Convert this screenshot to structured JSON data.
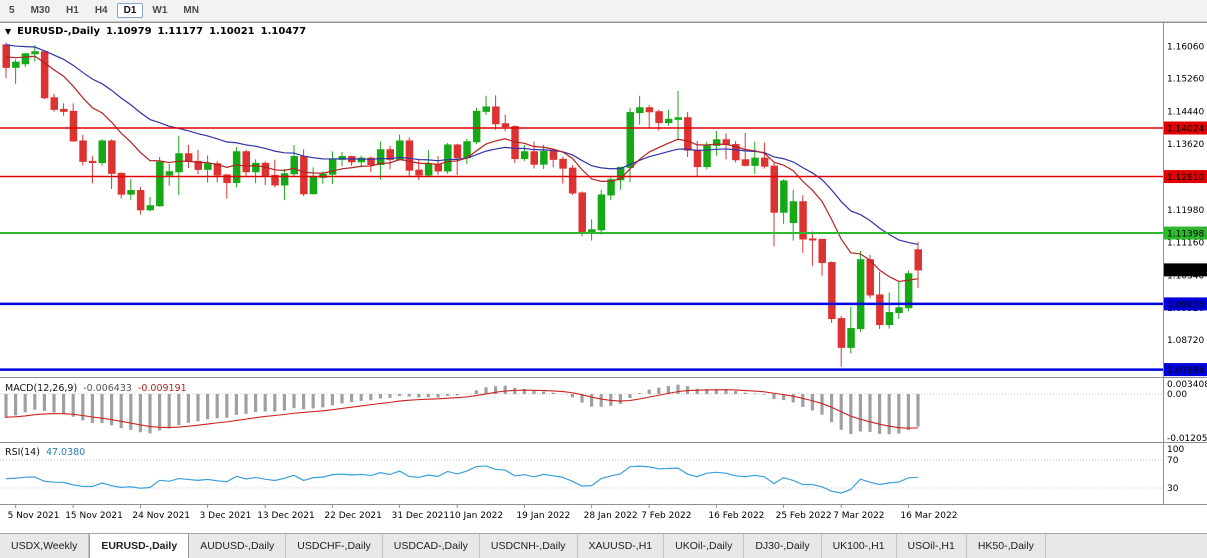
{
  "toolbar": {
    "timeframes": [
      "5",
      "M30",
      "H1",
      "H4",
      "D1",
      "W1",
      "MN"
    ],
    "active": "D1"
  },
  "chart_header": {
    "collapse_icon": "▼",
    "symbol": "EURUSD-,Daily",
    "open": "1.10979",
    "high": "1.11177",
    "low": "1.10021",
    "close": "1.10477"
  },
  "price_axis": {
    "labels": [
      "1.16060",
      "1.15260",
      "1.14440",
      "1.13620",
      "1.12800",
      "1.11980",
      "1.11160",
      "1.10340",
      "1.09520",
      "1.08720",
      "1.07900"
    ]
  },
  "levels": [
    {
      "label": "1.14024",
      "price": 1.14024,
      "color": "#e00000",
      "width": 1.5,
      "line": true
    },
    {
      "label": "1.12810",
      "price": 1.1281,
      "color": "#e00000",
      "width": 1.5,
      "line": true
    },
    {
      "label": "1.11398",
      "price": 1.11398,
      "color": "#2db82d",
      "width": 2,
      "line": true
    },
    {
      "label": "1.10477",
      "price": 1.10477,
      "color": "#000000",
      "width": 0,
      "line": false
    },
    {
      "label": "1.09626",
      "price": 1.09626,
      "color": "#0000dd",
      "width": 2.5,
      "line": true
    },
    {
      "label": "1.07984",
      "price": 1.07984,
      "color": "#0000dd",
      "width": 2.5,
      "line": true
    }
  ],
  "macd": {
    "label": "MACD(12,26,9)",
    "value": "-0.006433",
    "signal": "-0.009191",
    "axis_top": "0.003408",
    "axis_zero": "0.00",
    "axis_bottom": "-0.012058",
    "max": 0.003408,
    "min": -0.012058
  },
  "rsi": {
    "label": "RSI(14)",
    "value": "47.0380",
    "axis": [
      "100",
      "70",
      "30"
    ],
    "levels": [
      70,
      30
    ]
  },
  "x_axis": {
    "labels": [
      {
        "t": "5 Nov 2021",
        "i": 1
      },
      {
        "t": "15 Nov 2021",
        "i": 7
      },
      {
        "t": "24 Nov 2021",
        "i": 14
      },
      {
        "t": "3 Dec 2021",
        "i": 21
      },
      {
        "t": "13 Dec 2021",
        "i": 27
      },
      {
        "t": "22 Dec 2021",
        "i": 34
      },
      {
        "t": "31 Dec 2021",
        "i": 41
      },
      {
        "t": "10 Jan 2022",
        "i": 47
      },
      {
        "t": "19 Jan 2022",
        "i": 54
      },
      {
        "t": "28 Jan 2022",
        "i": 61
      },
      {
        "t": "7 Feb 2022",
        "i": 67
      },
      {
        "t": "16 Feb 2022",
        "i": 74
      },
      {
        "t": "25 Feb 2022",
        "i": 81
      },
      {
        "t": "7 Mar 2022",
        "i": 87
      },
      {
        "t": "16 Mar 2022",
        "i": 94
      }
    ]
  },
  "tabs": [
    {
      "label": "USDX,Weekly",
      "active": false
    },
    {
      "label": "EURUSD-,Daily",
      "active": true
    },
    {
      "label": "AUDUSD-,Daily",
      "active": false
    },
    {
      "label": "USDCHF-,Daily",
      "active": false
    },
    {
      "label": "USDCAD-,Daily",
      "active": false
    },
    {
      "label": "USDCNH-,Daily",
      "active": false
    },
    {
      "label": "XAUUSD-,H1",
      "active": false
    },
    {
      "label": "UKOil-,Daily",
      "active": false
    },
    {
      "label": "DJ30-,Daily",
      "active": false
    },
    {
      "label": "UK100-,H1",
      "active": false
    },
    {
      "label": "USOil-,H1",
      "active": false
    },
    {
      "label": "HK50-,Daily",
      "active": false
    }
  ],
  "colors": {
    "bull": "#17a817",
    "bear": "#dc3232",
    "ma_fast": "#b22222",
    "ma_slow": "#3333aa",
    "macd_hist": "#a0a0a0",
    "macd_signal": "#cc2222",
    "rsi_line": "#3da0dc",
    "separator": "#909090",
    "dotted": "#c4c4c4"
  },
  "chart_data": {
    "type": "candlestick",
    "title": "EURUSD-,Daily",
    "current_bar": {
      "open": 1.10979,
      "high": 1.11177,
      "low": 1.10021,
      "close": 1.10477
    },
    "indicators": [
      "MACD(12,26,9) = -0.006433 / -0.009191",
      "RSI(14) = 47.0380"
    ],
    "horizontal_lines": [
      1.14024,
      1.1281,
      1.11398,
      1.09626,
      1.07984
    ],
    "candles": [
      [
        1.161,
        1.1616,
        1.1527,
        1.1554
      ],
      [
        1.1554,
        1.1574,
        1.1513,
        1.1567
      ],
      [
        1.1563,
        1.159,
        1.1555,
        1.1588
      ],
      [
        1.1588,
        1.1609,
        1.1569,
        1.1593
      ],
      [
        1.1593,
        1.1595,
        1.1475,
        1.1478
      ],
      [
        1.1478,
        1.1488,
        1.1443,
        1.1449
      ],
      [
        1.1449,
        1.1464,
        1.1433,
        1.1444
      ],
      [
        1.1444,
        1.1464,
        1.1369,
        1.137
      ],
      [
        1.137,
        1.1385,
        1.1309,
        1.1319
      ],
      [
        1.1319,
        1.1332,
        1.1264,
        1.1316
      ],
      [
        1.1316,
        1.1374,
        1.1308,
        1.137
      ],
      [
        1.137,
        1.1374,
        1.125,
        1.1289
      ],
      [
        1.1289,
        1.1291,
        1.1226,
        1.1237
      ],
      [
        1.1237,
        1.1275,
        1.1223,
        1.1246
      ],
      [
        1.1246,
        1.1255,
        1.1186,
        1.1198
      ],
      [
        1.1198,
        1.123,
        1.1194,
        1.1208
      ],
      [
        1.1208,
        1.133,
        1.1206,
        1.1317
      ],
      [
        1.1285,
        1.1313,
        1.1258,
        1.1293
      ],
      [
        1.1293,
        1.1383,
        1.1235,
        1.1338
      ],
      [
        1.1338,
        1.136,
        1.1302,
        1.1319
      ],
      [
        1.1319,
        1.1348,
        1.1287,
        1.1299
      ],
      [
        1.1299,
        1.1334,
        1.1266,
        1.1313
      ],
      [
        1.1313,
        1.132,
        1.1267,
        1.1285
      ],
      [
        1.1285,
        1.1288,
        1.1226,
        1.1266
      ],
      [
        1.1266,
        1.1355,
        1.1254,
        1.1343
      ],
      [
        1.1343,
        1.1348,
        1.1283,
        1.1293
      ],
      [
        1.1293,
        1.1324,
        1.1264,
        1.1314
      ],
      [
        1.1314,
        1.1319,
        1.126,
        1.1284
      ],
      [
        1.1284,
        1.1323,
        1.1254,
        1.126
      ],
      [
        1.126,
        1.13,
        1.1222,
        1.1288
      ],
      [
        1.1288,
        1.136,
        1.1281,
        1.1331
      ],
      [
        1.1331,
        1.1349,
        1.1232,
        1.1238
      ],
      [
        1.1238,
        1.1304,
        1.1237,
        1.1279
      ],
      [
        1.1279,
        1.1294,
        1.1263,
        1.1287
      ],
      [
        1.1287,
        1.1344,
        1.1262,
        1.1324
      ],
      [
        1.1324,
        1.1342,
        1.1307,
        1.1331
      ],
      [
        1.1331,
        1.1333,
        1.1308,
        1.1318
      ],
      [
        1.1318,
        1.1333,
        1.1304,
        1.1327
      ],
      [
        1.1327,
        1.1331,
        1.1292,
        1.1311
      ],
      [
        1.1311,
        1.1369,
        1.1273,
        1.1348
      ],
      [
        1.1348,
        1.1358,
        1.1299,
        1.1324
      ],
      [
        1.1324,
        1.1386,
        1.1321,
        1.137
      ],
      [
        1.137,
        1.1379,
        1.1279,
        1.1297
      ],
      [
        1.1297,
        1.1323,
        1.1272,
        1.1285
      ],
      [
        1.1285,
        1.1347,
        1.1279,
        1.1312
      ],
      [
        1.1312,
        1.1332,
        1.1285,
        1.1295
      ],
      [
        1.1295,
        1.1365,
        1.1288,
        1.136
      ],
      [
        1.136,
        1.1363,
        1.1285,
        1.1328
      ],
      [
        1.1328,
        1.1375,
        1.1313,
        1.1368
      ],
      [
        1.1368,
        1.1453,
        1.1362,
        1.1444
      ],
      [
        1.1444,
        1.1483,
        1.1435,
        1.1455
      ],
      [
        1.1455,
        1.1484,
        1.1398,
        1.1413
      ],
      [
        1.1413,
        1.1436,
        1.1394,
        1.1406
      ],
      [
        1.1406,
        1.1409,
        1.1315,
        1.1326
      ],
      [
        1.1326,
        1.136,
        1.132,
        1.1343
      ],
      [
        1.1343,
        1.1369,
        1.1301,
        1.1312
      ],
      [
        1.1312,
        1.136,
        1.13,
        1.1344
      ],
      [
        1.1344,
        1.1348,
        1.1304,
        1.1324
      ],
      [
        1.1324,
        1.1331,
        1.1263,
        1.1302
      ],
      [
        1.1302,
        1.131,
        1.1235,
        1.124
      ],
      [
        1.124,
        1.1244,
        1.1131,
        1.1143
      ],
      [
        1.1143,
        1.1174,
        1.1121,
        1.1148
      ],
      [
        1.1148,
        1.1248,
        1.1136,
        1.1235
      ],
      [
        1.1235,
        1.1279,
        1.1222,
        1.1273
      ],
      [
        1.1273,
        1.1305,
        1.1248,
        1.1304
      ],
      [
        1.1304,
        1.1452,
        1.1267,
        1.1441
      ],
      [
        1.1441,
        1.1483,
        1.1411,
        1.1453
      ],
      [
        1.1453,
        1.146,
        1.14,
        1.1443
      ],
      [
        1.1443,
        1.1448,
        1.1396,
        1.1416
      ],
      [
        1.1416,
        1.1448,
        1.1408,
        1.1424
      ],
      [
        1.1424,
        1.1495,
        1.1375,
        1.1428
      ],
      [
        1.1428,
        1.1442,
        1.133,
        1.1347
      ],
      [
        1.1347,
        1.137,
        1.128,
        1.1306
      ],
      [
        1.1306,
        1.1368,
        1.1299,
        1.1359
      ],
      [
        1.1359,
        1.1395,
        1.1333,
        1.1373
      ],
      [
        1.1373,
        1.1389,
        1.1324,
        1.1361
      ],
      [
        1.1361,
        1.137,
        1.1316,
        1.1323
      ],
      [
        1.1323,
        1.139,
        1.1306,
        1.1309
      ],
      [
        1.1309,
        1.1368,
        1.1287,
        1.1327
      ],
      [
        1.1327,
        1.1366,
        1.1301,
        1.1307
      ],
      [
        1.1307,
        1.1315,
        1.1106,
        1.1192
      ],
      [
        1.1192,
        1.1274,
        1.1163,
        1.127
      ],
      [
        1.1166,
        1.1248,
        1.1121,
        1.1218
      ],
      [
        1.1218,
        1.1234,
        1.109,
        1.1125
      ],
      [
        1.1125,
        1.1144,
        1.1058,
        1.1124
      ],
      [
        1.1124,
        1.1126,
        1.1033,
        1.1066
      ],
      [
        1.1066,
        1.1069,
        1.0915,
        1.0926
      ],
      [
        1.0926,
        1.0932,
        1.0806,
        1.0854
      ],
      [
        1.0854,
        1.0955,
        1.0839,
        1.0901
      ],
      [
        1.0901,
        1.1095,
        1.0892,
        1.1073
      ],
      [
        1.1073,
        1.1085,
        1.0977,
        1.0985
      ],
      [
        1.0985,
        1.1043,
        1.09,
        1.0911
      ],
      [
        1.0911,
        1.0991,
        1.0901,
        1.0941
      ],
      [
        1.0941,
        1.102,
        1.0925,
        1.0953
      ],
      [
        1.0953,
        1.1046,
        1.0944,
        1.1038
      ],
      [
        1.10979,
        1.11177,
        1.10021,
        1.10477
      ]
    ]
  }
}
